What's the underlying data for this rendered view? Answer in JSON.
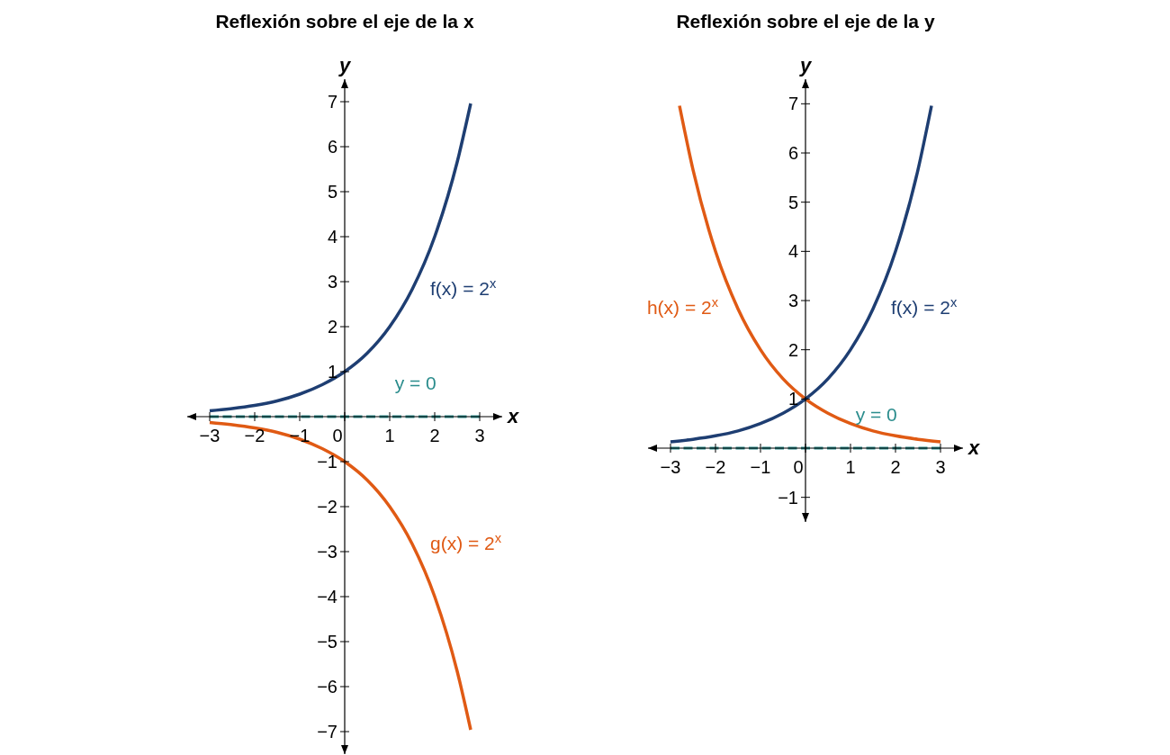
{
  "chart_data": [
    {
      "type": "line",
      "title": "Reflexión sobre el eje de la x",
      "xlabel": "x",
      "ylabel": "y",
      "xlim": [
        -3.5,
        3.5
      ],
      "ylim": [
        -7.5,
        7.5
      ],
      "xticks": [
        -3,
        -2,
        -1,
        0,
        1,
        2,
        3
      ],
      "yticks": [
        -7,
        -6,
        -5,
        -4,
        -3,
        -2,
        -1,
        1,
        2,
        3,
        4,
        5,
        6,
        7
      ],
      "series": [
        {
          "name": "f(x) = 2$^{x}$",
          "color": "#1e3e72",
          "x": [
            -3,
            -2.5,
            -2,
            -1.5,
            -1,
            -0.5,
            0,
            0.5,
            1,
            1.5,
            2,
            2.5,
            2.8
          ],
          "values": [
            0.13,
            0.18,
            0.25,
            0.35,
            0.5,
            0.71,
            1,
            1.41,
            2,
            2.83,
            4,
            5.66,
            6.96
          ]
        },
        {
          "name": "g(x) = 2$^{x}$",
          "color": "#e05a14",
          "x": [
            -3,
            -2.5,
            -2,
            -1.5,
            -1,
            -0.5,
            0,
            0.5,
            1,
            1.5,
            2,
            2.5,
            2.8
          ],
          "values": [
            -0.13,
            -0.18,
            -0.25,
            -0.35,
            -0.5,
            -0.71,
            -1,
            -1.41,
            -2,
            -2.83,
            -4,
            -5.66,
            -6.96
          ]
        },
        {
          "name": "y = 0",
          "color": "#2a8c8c",
          "line_style": "dashed",
          "x": [
            -3,
            3
          ],
          "values": [
            0,
            0
          ]
        }
      ]
    },
    {
      "type": "line",
      "title": "Reflexión sobre el eje de la y",
      "xlabel": "x",
      "ylabel": "y",
      "xlim": [
        -3.5,
        3.5
      ],
      "ylim": [
        -1.5,
        7.5
      ],
      "xticks": [
        -3,
        -2,
        -1,
        0,
        1,
        2,
        3
      ],
      "yticks": [
        -1,
        1,
        2,
        3,
        4,
        5,
        6,
        7
      ],
      "series": [
        {
          "name": "h(x) = 2$^{x}$",
          "color": "#e05a14",
          "x": [
            -2.8,
            -2.5,
            -2,
            -1.5,
            -1,
            -0.5,
            0,
            0.5,
            1,
            1.5,
            2,
            2.5,
            3
          ],
          "values": [
            6.96,
            5.66,
            4,
            2.83,
            2,
            1.41,
            1,
            0.71,
            0.5,
            0.35,
            0.25,
            0.18,
            0.13
          ]
        },
        {
          "name": "f(x) = 2$^{x}$",
          "color": "#1e3e72",
          "x": [
            -3,
            -2.5,
            -2,
            -1.5,
            -1,
            -0.5,
            0,
            0.5,
            1,
            1.5,
            2,
            2.5,
            2.8
          ],
          "values": [
            0.13,
            0.18,
            0.25,
            0.35,
            0.5,
            0.71,
            1,
            1.41,
            2,
            2.83,
            4,
            5.66,
            6.96
          ]
        },
        {
          "name": "y = 0",
          "color": "#2a8c8c",
          "line_style": "dashed",
          "x": [
            -3,
            3
          ],
          "values": [
            0,
            0
          ]
        }
      ]
    }
  ]
}
